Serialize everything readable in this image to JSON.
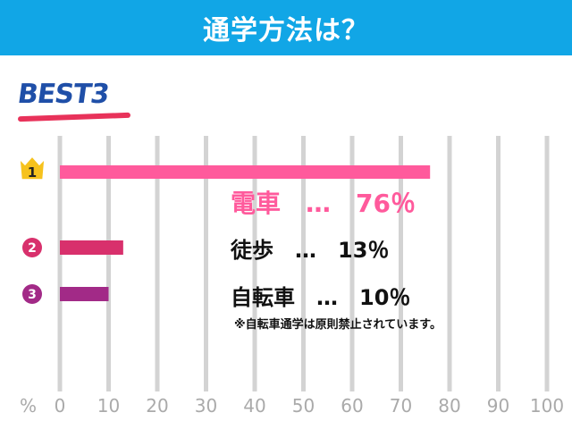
{
  "header": {
    "title": "通学方法は？"
  },
  "badge": {
    "text": "BEST3"
  },
  "colors": {
    "header_bg": "#11a6e6",
    "grid": "#d3d3d3",
    "bar1": "#ff5a9c",
    "bar2": "#d8306c",
    "bar3": "#a22a87",
    "crown": "#f6c21d",
    "best_text": "#1f4fa8",
    "best_underline": "#e8325a"
  },
  "ranks": [
    {
      "num": "1",
      "icon": "crown-icon"
    },
    {
      "num": "2",
      "icon": "circle-number-icon"
    },
    {
      "num": "3",
      "icon": "circle-number-icon"
    }
  ],
  "labels": {
    "rank1": "電車　…　76％",
    "rank2": "徒歩　…　13％",
    "rank3": "自転車　…　10％",
    "note": "※自転車通学は原則禁止されています。"
  },
  "chart_data": {
    "type": "bar",
    "orientation": "horizontal",
    "categories": [
      "電車",
      "徒歩",
      "自転車"
    ],
    "values": [
      76,
      13,
      10
    ],
    "xlim": [
      0,
      100
    ],
    "xticks": [
      "0",
      "10",
      "20",
      "30",
      "40",
      "50",
      "60",
      "70",
      "80",
      "90",
      "100"
    ],
    "xunit": "%",
    "grid": true
  }
}
